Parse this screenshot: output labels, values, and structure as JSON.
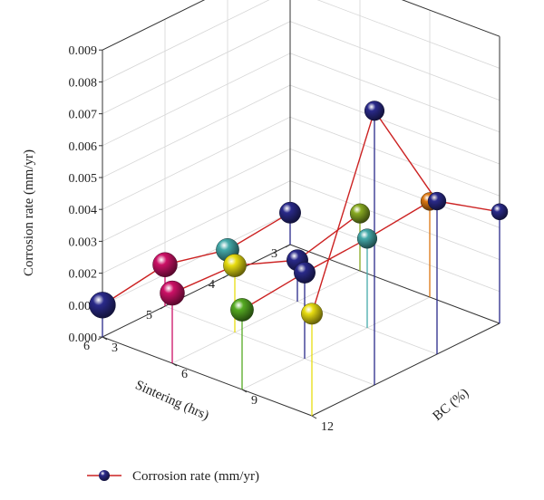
{
  "chart_data": {
    "type": "scatter3d",
    "title": "",
    "xlabel": "Sintering (hrs)",
    "ylabel": "BC (%)",
    "zlabel": "Corrosion rate (mm/yr)",
    "x_ticks": [
      "3",
      "4",
      "5",
      "6"
    ],
    "y_ticks": [
      "3",
      "6",
      "9",
      "12"
    ],
    "z_ticks": [
      "0.000",
      "0.001",
      "0.002",
      "0.003",
      "0.004",
      "0.005",
      "0.006",
      "0.007",
      "0.008",
      "0.009"
    ],
    "xlim": [
      3,
      6
    ],
    "ylim": [
      3,
      12
    ],
    "zlim": [
      0,
      0.009
    ],
    "grid": true,
    "legend": {
      "position": "bottom-left",
      "entries": [
        "Corrosion rate (mm/yr)"
      ]
    },
    "line_color": "#cc2222",
    "series": [
      {
        "name": "Corrosion rate (mm/yr)",
        "points": [
          {
            "sintering": 3,
            "bc": 3,
            "rate": 0.001,
            "color": "#2a2a8a"
          },
          {
            "sintering": 3,
            "bc": 6,
            "rate": 0.0018,
            "color": "#88aa22"
          },
          {
            "sintering": 3,
            "bc": 9,
            "rate": 0.003,
            "color": "#dd7711"
          },
          {
            "sintering": 3,
            "bc": 12,
            "rate": 0.0035,
            "color": "#2a2a8a"
          },
          {
            "sintering": 4,
            "bc": 3,
            "rate": 0.0008,
            "color": "#44aaaa"
          },
          {
            "sintering": 4,
            "bc": 6,
            "rate": 0.0013,
            "color": "#2a2a8a"
          },
          {
            "sintering": 4,
            "bc": 9,
            "rate": 0.0028,
            "color": "#44aaaa"
          },
          {
            "sintering": 4,
            "bc": 12,
            "rate": 0.0048,
            "color": "#2a2a8a"
          },
          {
            "sintering": 5,
            "bc": 3,
            "rate": 0.0013,
            "color": "#cc1166"
          },
          {
            "sintering": 5,
            "bc": 6,
            "rate": 0.0021,
            "color": "#e8dd11"
          },
          {
            "sintering": 5,
            "bc": 9,
            "rate": 0.0027,
            "color": "#2a2a8a"
          },
          {
            "sintering": 5,
            "bc": 12,
            "rate": 0.0086,
            "color": "#2a2a8a"
          },
          {
            "sintering": 6,
            "bc": 3,
            "rate": 0.001,
            "color": "#2a2a8a"
          },
          {
            "sintering": 6,
            "bc": 6,
            "rate": 0.0022,
            "color": "#cc1166"
          },
          {
            "sintering": 6,
            "bc": 9,
            "rate": 0.0025,
            "color": "#55aa22"
          },
          {
            "sintering": 6,
            "bc": 12,
            "rate": 0.0032,
            "color": "#e8dd11"
          }
        ]
      }
    ],
    "connections": [
      [
        0,
        4
      ],
      [
        4,
        8
      ],
      [
        8,
        12
      ],
      [
        1,
        5
      ],
      [
        5,
        9
      ],
      [
        9,
        13
      ],
      [
        2,
        6
      ],
      [
        6,
        10
      ],
      [
        10,
        14
      ],
      [
        3,
        7
      ],
      [
        7,
        11
      ],
      [
        11,
        15
      ]
    ]
  }
}
